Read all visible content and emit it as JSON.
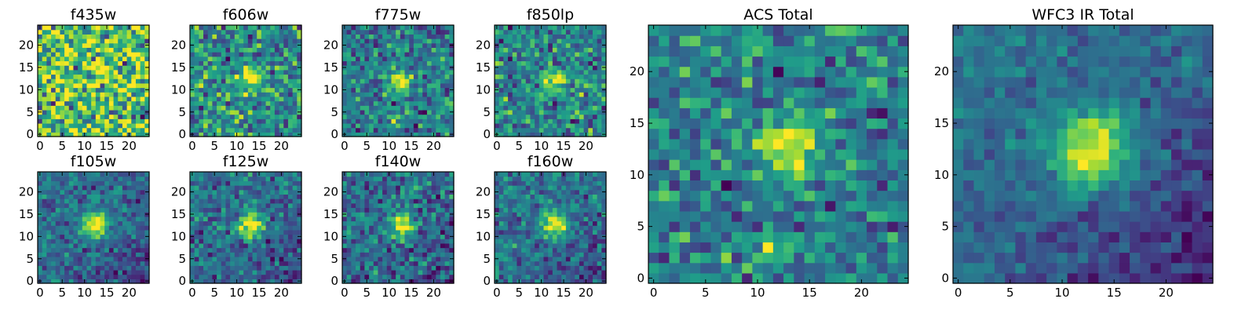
{
  "figure": {
    "colormap": "viridis",
    "background": "#ffffff",
    "colors": [
      "#440154",
      "#482777",
      "#3e4989",
      "#31688e",
      "#26828e",
      "#1f9e89",
      "#35b779",
      "#6ece58",
      "#b5de2b",
      "#fde725"
    ]
  },
  "chart_data": [
    {
      "type": "heatmap",
      "title": "f435w",
      "grid": [
        25,
        25
      ],
      "xlim": [
        0,
        24
      ],
      "ylim": [
        0,
        24
      ],
      "xticks": [
        "0",
        "5",
        "10",
        "15",
        "20"
      ],
      "yticks": [
        "0",
        "5",
        "10",
        "15",
        "20"
      ],
      "seed": 11,
      "source": {
        "x": 12.5,
        "y": 12.5,
        "sigma": 2.5,
        "amp": 0.15
      },
      "background_level": 0.72,
      "noise": 0.5,
      "secondary": null,
      "gradient": 0
    },
    {
      "type": "heatmap",
      "title": "f606w",
      "grid": [
        25,
        25
      ],
      "xlim": [
        0,
        24
      ],
      "ylim": [
        0,
        24
      ],
      "xticks": [
        "0",
        "5",
        "10",
        "15",
        "20"
      ],
      "yticks": [
        "0",
        "5",
        "10",
        "15",
        "20"
      ],
      "seed": 23,
      "source": {
        "x": 13,
        "y": 12.5,
        "sigma": 1.6,
        "amp": 0.55
      },
      "background_level": 0.5,
      "noise": 0.38,
      "secondary": null,
      "gradient": 0
    },
    {
      "type": "heatmap",
      "title": "f775w",
      "grid": [
        25,
        25
      ],
      "xlim": [
        0,
        24
      ],
      "ylim": [
        0,
        24
      ],
      "xticks": [
        "0",
        "5",
        "10",
        "15",
        "20"
      ],
      "yticks": [
        "0",
        "5",
        "10",
        "15",
        "20"
      ],
      "seed": 37,
      "source": {
        "x": 12.5,
        "y": 12,
        "sigma": 1.6,
        "amp": 0.65
      },
      "background_level": 0.42,
      "noise": 0.32,
      "secondary": {
        "x": 11,
        "y": 2.8,
        "sigma": 0.6,
        "amp": 0.6
      },
      "gradient": 0
    },
    {
      "type": "heatmap",
      "title": "f850lp",
      "grid": [
        25,
        25
      ],
      "xlim": [
        0,
        24
      ],
      "ylim": [
        0,
        24
      ],
      "xticks": [
        "0",
        "5",
        "10",
        "15",
        "20"
      ],
      "yticks": [
        "0",
        "5",
        "10",
        "15",
        "20"
      ],
      "seed": 41,
      "source": {
        "x": 13,
        "y": 12,
        "sigma": 1.7,
        "amp": 0.6
      },
      "background_level": 0.45,
      "noise": 0.36,
      "secondary": null,
      "gradient": 0
    },
    {
      "type": "heatmap",
      "title": "f105w",
      "grid": [
        25,
        25
      ],
      "xlim": [
        0,
        24
      ],
      "ylim": [
        0,
        24
      ],
      "xticks": [
        "0",
        "5",
        "10",
        "15",
        "20"
      ],
      "yticks": [
        "0",
        "5",
        "10",
        "15",
        "20"
      ],
      "seed": 53,
      "source": {
        "x": 12.5,
        "y": 12.5,
        "sigma": 2.1,
        "amp": 0.7
      },
      "background_level": 0.38,
      "noise": 0.22,
      "secondary": null,
      "gradient": 0.2
    },
    {
      "type": "heatmap",
      "title": "f125w",
      "grid": [
        25,
        25
      ],
      "xlim": [
        0,
        24
      ],
      "ylim": [
        0,
        24
      ],
      "xticks": [
        "0",
        "5",
        "10",
        "15",
        "20"
      ],
      "yticks": [
        "0",
        "5",
        "10",
        "15",
        "20"
      ],
      "seed": 67,
      "source": {
        "x": 13,
        "y": 12.5,
        "sigma": 2.2,
        "amp": 0.62
      },
      "background_level": 0.38,
      "noise": 0.26,
      "secondary": null,
      "gradient": 0.18
    },
    {
      "type": "heatmap",
      "title": "f140w",
      "grid": [
        25,
        25
      ],
      "xlim": [
        0,
        24
      ],
      "ylim": [
        0,
        24
      ],
      "xticks": [
        "0",
        "5",
        "10",
        "15",
        "20"
      ],
      "yticks": [
        "0",
        "5",
        "10",
        "15",
        "20"
      ],
      "seed": 79,
      "source": {
        "x": 13,
        "y": 12.5,
        "sigma": 2.0,
        "amp": 0.62
      },
      "background_level": 0.38,
      "noise": 0.3,
      "secondary": null,
      "gradient": 0.15
    },
    {
      "type": "heatmap",
      "title": "f160w",
      "grid": [
        25,
        25
      ],
      "xlim": [
        0,
        24
      ],
      "ylim": [
        0,
        24
      ],
      "xticks": [
        "0",
        "5",
        "10",
        "15",
        "20"
      ],
      "yticks": [
        "0",
        "5",
        "10",
        "15",
        "20"
      ],
      "seed": 83,
      "source": {
        "x": 13,
        "y": 12.5,
        "sigma": 2.2,
        "amp": 0.66
      },
      "background_level": 0.4,
      "noise": 0.25,
      "secondary": null,
      "gradient": 0.22
    },
    {
      "type": "heatmap",
      "title": "ACS Total",
      "grid": [
        25,
        25
      ],
      "xlim": [
        0,
        24
      ],
      "ylim": [
        0,
        24
      ],
      "xticks": [
        "0",
        "5",
        "10",
        "15",
        "20"
      ],
      "yticks": [
        "0",
        "5",
        "10",
        "15",
        "20"
      ],
      "seed": 97,
      "source": {
        "x": 13,
        "y": 12.5,
        "sigma": 1.9,
        "amp": 0.62
      },
      "background_level": 0.45,
      "noise": 0.3,
      "secondary": {
        "x": 11,
        "y": 2.8,
        "sigma": 0.6,
        "amp": 0.55
      },
      "gradient": 0.05
    },
    {
      "type": "heatmap",
      "title": "WFC3 IR Total",
      "grid": [
        25,
        25
      ],
      "xlim": [
        0,
        24
      ],
      "ylim": [
        0,
        24
      ],
      "xticks": [
        "0",
        "5",
        "10",
        "15",
        "20"
      ],
      "yticks": [
        "0",
        "5",
        "10",
        "15",
        "20"
      ],
      "seed": 101,
      "source": {
        "x": 13,
        "y": 12.5,
        "sigma": 2.6,
        "amp": 0.68
      },
      "background_level": 0.38,
      "noise": 0.16,
      "secondary": null,
      "gradient": 0.3
    }
  ]
}
